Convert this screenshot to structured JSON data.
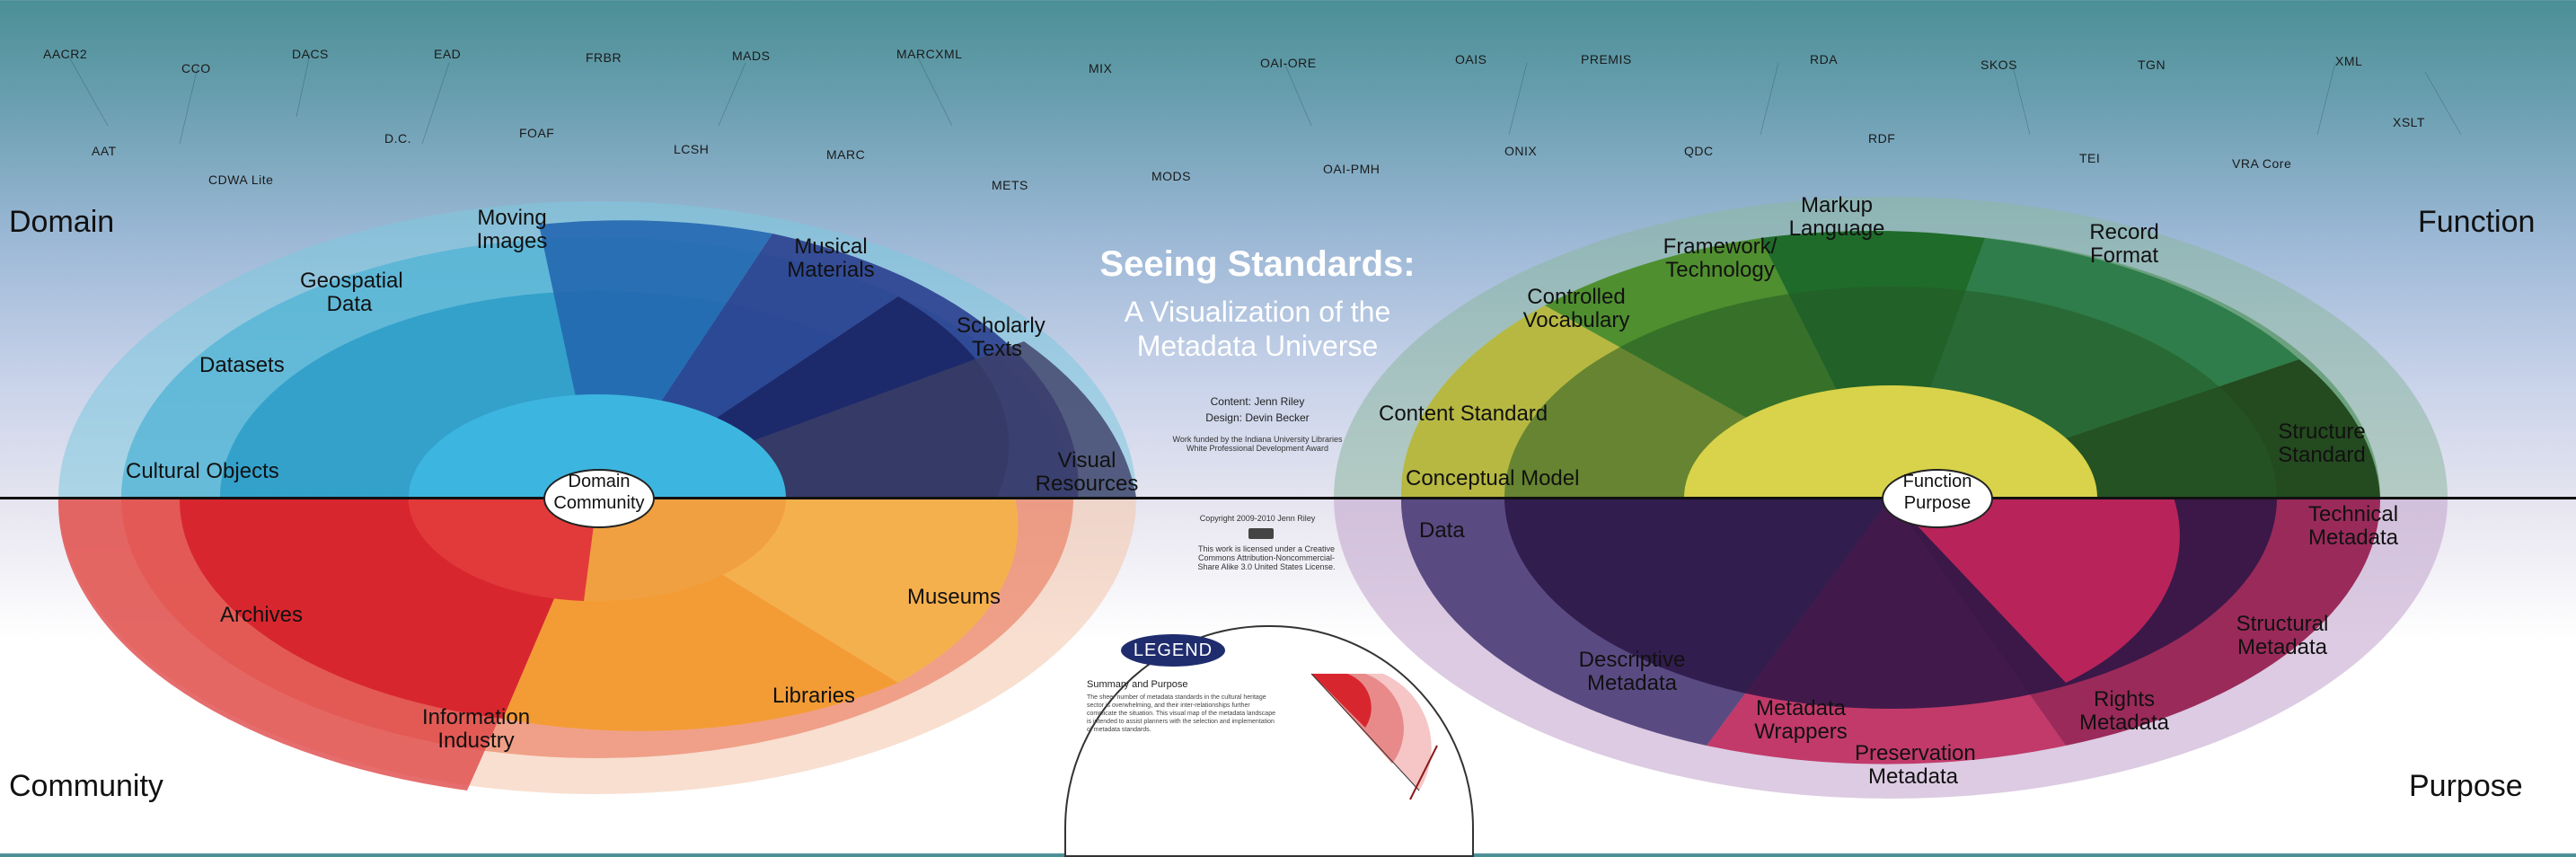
{
  "title": "Seeing Standards:",
  "subtitle_line1": "A Visualization of the",
  "subtitle_line2": "Metadata Universe",
  "credits": {
    "content": "Content: Jenn Riley",
    "design": "Design: Devin Becker",
    "funding": "Work funded by the Indiana University Libraries White Professional Development Award",
    "copyright": "Copyright 2009-2010 Jenn Riley",
    "license": "This work is licensed under a Creative Commons Attribution-Noncommercial-Share Alike 3.0 United States License."
  },
  "corners": {
    "top_left": "Domain",
    "bottom_left": "Community",
    "top_right": "Function",
    "bottom_right": "Purpose"
  },
  "hubs": {
    "left": [
      "Domain",
      "Community"
    ],
    "right": [
      "Function",
      "Purpose"
    ]
  },
  "standards_top": [
    "AACR2",
    "CCO",
    "DACS",
    "EAD",
    "FRBR",
    "MADS",
    "MARCXML",
    "MIX",
    "OAI-ORE",
    "OAIS",
    "PREMIS",
    "RDA",
    "SKOS",
    "TGN",
    "XML",
    "AAT",
    "CDWA Lite",
    "D.C.",
    "FOAF",
    "LCSH",
    "MARC",
    "METS",
    "MODS",
    "OAI-PMH",
    "ONIX",
    "QDC",
    "RDF",
    "TEI",
    "VRA Core",
    "XSLT"
  ],
  "left_wheel": {
    "domain_segments": [
      "Cultural Objects",
      "Datasets",
      "Geospatial Data",
      "Moving Images",
      "Musical Materials",
      "Scholarly Texts",
      "Visual Resources"
    ],
    "community_segments": [
      "Archives",
      "Information Industry",
      "Libraries",
      "Museums"
    ]
  },
  "right_wheel": {
    "function_segments": [
      "Conceptual Model",
      "Content Standard",
      "Controlled Vocabulary",
      "Framework/ Technology",
      "Markup Language",
      "Record Format",
      "Structure Standard"
    ],
    "purpose_segments": [
      "Data",
      "Descriptive Metadata",
      "Metadata Wrappers",
      "Preservation Metadata",
      "Rights Metadata",
      "Structural Metadata",
      "Technical Metadata"
    ]
  },
  "legend": {
    "label": "LEGEND",
    "summary_title": "Summary and Purpose",
    "summary_text": "The sheer number of metadata standards in the cultural heritage sector is overwhelming, and their inter-relationships further complicate the situation. This visual map of the metadata landscape is intended to assist planners with the selection and implementation of metadata standards."
  },
  "colors": {
    "domain_light": "#5bc0de",
    "domain_dark": "#1b2a6b",
    "community_red": "#d8262f",
    "community_orange": "#f39c35",
    "function_green": "#2e7d32",
    "function_yellow": "#c8c23a",
    "purpose_purple": "#2a1545",
    "purpose_pink": "#c23a6a"
  }
}
